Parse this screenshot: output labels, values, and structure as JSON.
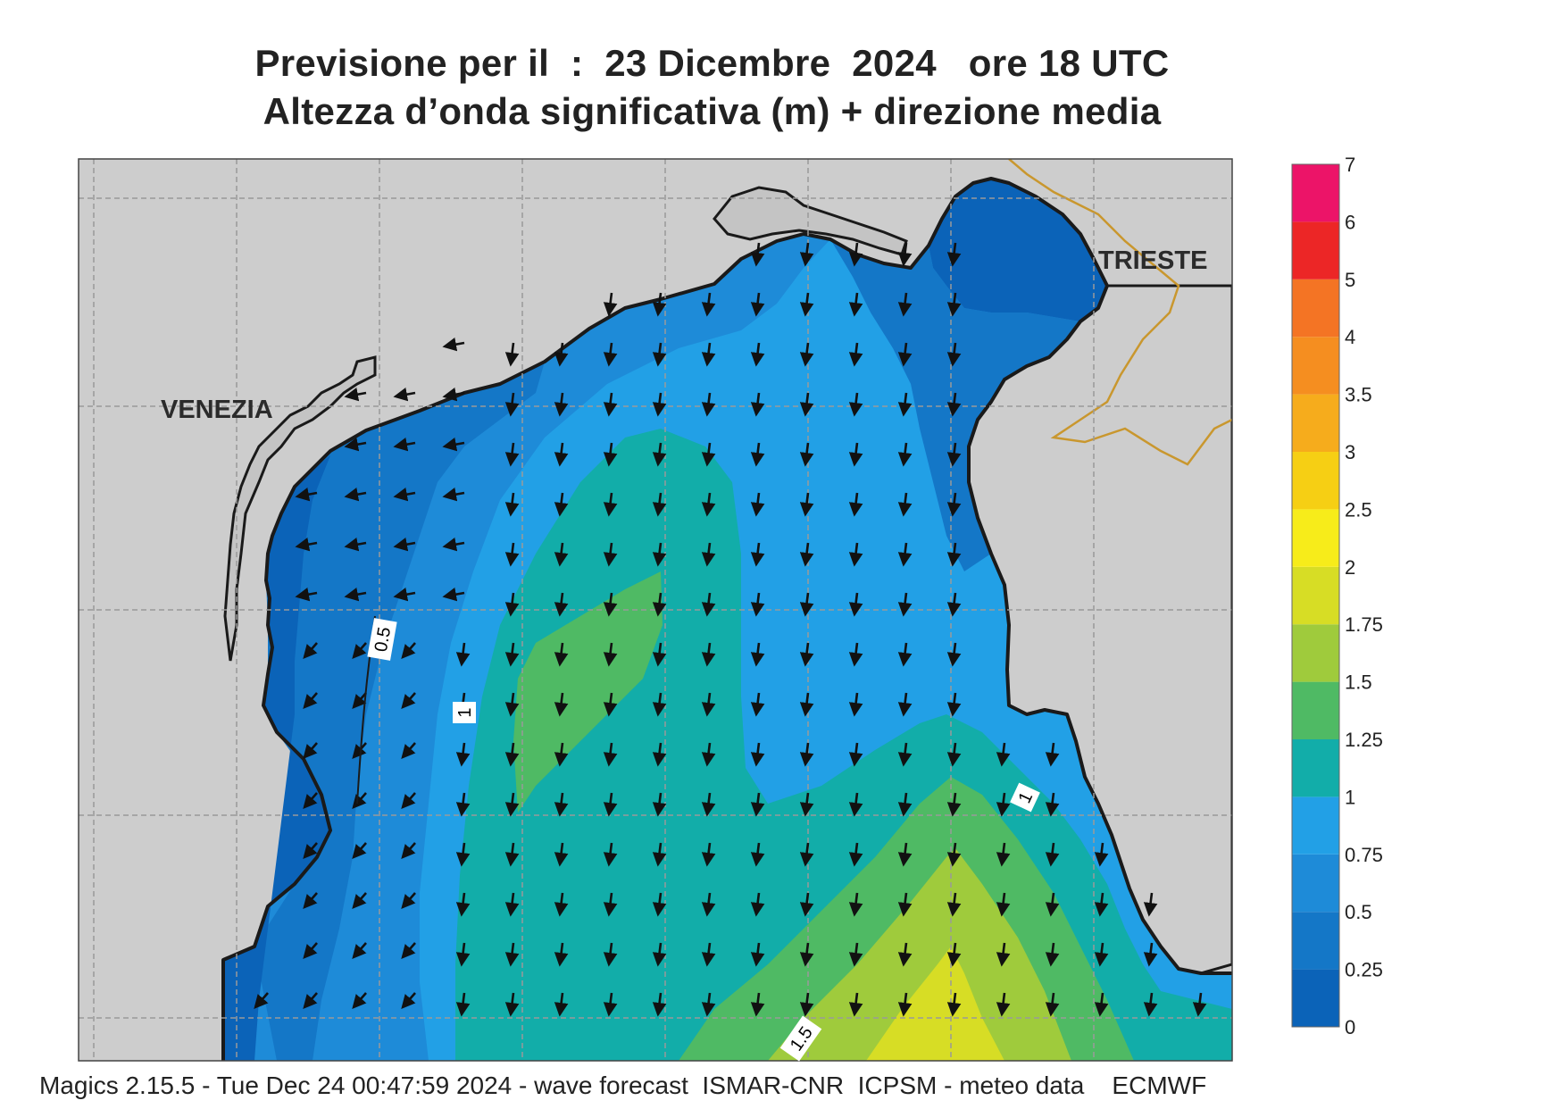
{
  "title": {
    "line1": "Previsione per il  :  23 Dicembre  2024   ore 18 UTC",
    "line2": "Altezza d’onda significativa (m) + direzione media"
  },
  "places": [
    {
      "name": "VENEZIA"
    },
    {
      "name": "TRIESTE"
    }
  ],
  "contour_labels": [
    "0.5",
    "1",
    "1",
    "1.5"
  ],
  "colorbar": {
    "levels": [
      "0",
      "0.25",
      "0.5",
      "0.75",
      "1",
      "1.25",
      "1.5",
      "1.75",
      "2",
      "2.5",
      "3",
      "3.5",
      "4",
      "5",
      "6",
      "7"
    ],
    "colors": [
      "#0b63b8",
      "#1477c7",
      "#1e8bd8",
      "#22a0e6",
      "#12ada9",
      "#4fba64",
      "#9fcb3c",
      "#d7dd25",
      "#f7ec1a",
      "#f6cf14",
      "#f6ac1c",
      "#f58e20",
      "#f47424",
      "#ec2626",
      "#ec1468"
    ]
  },
  "colors": {
    "land": "#cdcdcd",
    "coast": "#1a1a1a",
    "border": "#c9972e",
    "grid": "#9a9a9a"
  },
  "footer": "Magics 2.15.5 - Tue Dec 24 00:47:59 2024 - wave forecast  ISMAR-CNR  ICPSM - meteo data    ECMWF"
}
